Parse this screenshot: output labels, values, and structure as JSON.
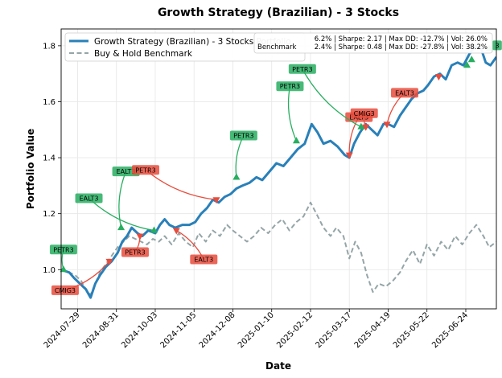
{
  "chart_data": {
    "type": "line",
    "title": "Growth Strategy (Brazilian) - 3 Stocks",
    "xlabel": "Date",
    "ylabel": "Portfolio Value",
    "x_ticks": [
      "2024-07-29",
      "2024-08-31",
      "2024-10-03",
      "2024-11-05",
      "2024-12-08",
      "2025-01-10",
      "2025-02-12",
      "2025-03-17",
      "2025-04-19",
      "2025-05-22",
      "2025-06-24"
    ],
    "xlim": [
      "2024-07-15",
      "2025-07-20"
    ],
    "ylim": [
      0.86,
      1.86
    ],
    "y_ticks": [
      1.0,
      1.2,
      1.4,
      1.6,
      1.8
    ],
    "grid": true,
    "legend_position": "top-left",
    "colors": {
      "strategy": "#2980b9",
      "benchmark": "#95a5a6",
      "buy": "#27ae60",
      "sell": "#e74c3c"
    },
    "stats_lines": [
      "6.2% | Sharpe: 2.17 | Max DD: -12.7% | Vol: 26.0%",
      "2.4% | Sharpe: 0.48 | Max DD: -27.8% | Vol: 38.2%"
    ],
    "stats_peek": "Benchmark",
    "series": [
      {
        "name": "Growth Strategy (Brazilian) - 3 Stocks Portfolio",
        "style": "solid",
        "points": [
          [
            "2024-07-15",
            1.0
          ],
          [
            "2024-07-22",
            0.99
          ],
          [
            "2024-07-26",
            0.97
          ],
          [
            "2024-07-31",
            0.95
          ],
          [
            "2024-08-05",
            0.93
          ],
          [
            "2024-08-09",
            0.9
          ],
          [
            "2024-08-13",
            0.95
          ],
          [
            "2024-08-17",
            0.98
          ],
          [
            "2024-08-22",
            1.01
          ],
          [
            "2024-08-27",
            1.03
          ],
          [
            "2024-09-01",
            1.06
          ],
          [
            "2024-09-05",
            1.1
          ],
          [
            "2024-09-09",
            1.12
          ],
          [
            "2024-09-13",
            1.15
          ],
          [
            "2024-09-18",
            1.13
          ],
          [
            "2024-09-22",
            1.12
          ],
          [
            "2024-09-27",
            1.14
          ],
          [
            "2024-10-03",
            1.13
          ],
          [
            "2024-10-07",
            1.16
          ],
          [
            "2024-10-11",
            1.18
          ],
          [
            "2024-10-15",
            1.16
          ],
          [
            "2024-10-20",
            1.15
          ],
          [
            "2024-10-26",
            1.16
          ],
          [
            "2024-11-01",
            1.16
          ],
          [
            "2024-11-06",
            1.17
          ],
          [
            "2024-11-11",
            1.2
          ],
          [
            "2024-11-16",
            1.22
          ],
          [
            "2024-11-21",
            1.25
          ],
          [
            "2024-11-26",
            1.24
          ],
          [
            "2024-12-01",
            1.26
          ],
          [
            "2024-12-06",
            1.27
          ],
          [
            "2024-12-11",
            1.29
          ],
          [
            "2024-12-16",
            1.3
          ],
          [
            "2024-12-22",
            1.31
          ],
          [
            "2024-12-28",
            1.33
          ],
          [
            "2025-01-02",
            1.32
          ],
          [
            "2025-01-08",
            1.35
          ],
          [
            "2025-01-14",
            1.38
          ],
          [
            "2025-01-20",
            1.37
          ],
          [
            "2025-01-26",
            1.4
          ],
          [
            "2025-02-01",
            1.43
          ],
          [
            "2025-02-07",
            1.45
          ],
          [
            "2025-02-13",
            1.52
          ],
          [
            "2025-02-18",
            1.49
          ],
          [
            "2025-02-23",
            1.45
          ],
          [
            "2025-03-01",
            1.46
          ],
          [
            "2025-03-07",
            1.44
          ],
          [
            "2025-03-13",
            1.41
          ],
          [
            "2025-03-17",
            1.4
          ],
          [
            "2025-03-21",
            1.45
          ],
          [
            "2025-03-26",
            1.49
          ],
          [
            "2025-03-31",
            1.52
          ],
          [
            "2025-04-05",
            1.5
          ],
          [
            "2025-04-10",
            1.48
          ],
          [
            "2025-04-15",
            1.52
          ],
          [
            "2025-04-19",
            1.52
          ],
          [
            "2025-04-24",
            1.51
          ],
          [
            "2025-04-29",
            1.55
          ],
          [
            "2025-05-04",
            1.58
          ],
          [
            "2025-05-09",
            1.61
          ],
          [
            "2025-05-14",
            1.63
          ],
          [
            "2025-05-19",
            1.64
          ],
          [
            "2025-05-23",
            1.66
          ],
          [
            "2025-05-28",
            1.69
          ],
          [
            "2025-06-02",
            1.7
          ],
          [
            "2025-06-07",
            1.68
          ],
          [
            "2025-06-12",
            1.73
          ],
          [
            "2025-06-17",
            1.74
          ],
          [
            "2025-06-22",
            1.73
          ],
          [
            "2025-06-27",
            1.77
          ],
          [
            "2025-07-02",
            1.8
          ],
          [
            "2025-07-07",
            1.79
          ],
          [
            "2025-07-11",
            1.74
          ],
          [
            "2025-07-15",
            1.73
          ],
          [
            "2025-07-20",
            1.76
          ]
        ]
      },
      {
        "name": "Buy & Hold Benchmark",
        "style": "dashed",
        "points": [
          [
            "2024-07-15",
            1.0
          ],
          [
            "2024-07-22",
            0.99
          ],
          [
            "2024-07-27",
            0.98
          ],
          [
            "2024-08-01",
            0.96
          ],
          [
            "2024-08-05",
            0.93
          ],
          [
            "2024-08-09",
            0.91
          ],
          [
            "2024-08-13",
            0.95
          ],
          [
            "2024-08-17",
            0.99
          ],
          [
            "2024-08-22",
            1.02
          ],
          [
            "2024-08-27",
            1.05
          ],
          [
            "2024-09-01",
            1.08
          ],
          [
            "2024-09-06",
            1.1
          ],
          [
            "2024-09-11",
            1.12
          ],
          [
            "2024-09-16",
            1.11
          ],
          [
            "2024-09-21",
            1.1
          ],
          [
            "2024-09-26",
            1.09
          ],
          [
            "2024-10-01",
            1.11
          ],
          [
            "2024-10-06",
            1.1
          ],
          [
            "2024-10-11",
            1.12
          ],
          [
            "2024-10-17",
            1.09
          ],
          [
            "2024-10-23",
            1.13
          ],
          [
            "2024-10-29",
            1.1
          ],
          [
            "2024-11-04",
            1.08
          ],
          [
            "2024-11-09",
            1.13
          ],
          [
            "2024-11-15",
            1.1
          ],
          [
            "2024-11-21",
            1.14
          ],
          [
            "2024-11-27",
            1.12
          ],
          [
            "2024-12-03",
            1.16
          ],
          [
            "2024-12-08",
            1.14
          ],
          [
            "2024-12-14",
            1.12
          ],
          [
            "2024-12-20",
            1.1
          ],
          [
            "2024-12-26",
            1.12
          ],
          [
            "2025-01-01",
            1.15
          ],
          [
            "2025-01-07",
            1.13
          ],
          [
            "2025-01-13",
            1.16
          ],
          [
            "2025-01-19",
            1.18
          ],
          [
            "2025-01-25",
            1.14
          ],
          [
            "2025-01-31",
            1.17
          ],
          [
            "2025-02-06",
            1.19
          ],
          [
            "2025-02-12",
            1.24
          ],
          [
            "2025-02-17",
            1.2
          ],
          [
            "2025-02-23",
            1.15
          ],
          [
            "2025-03-01",
            1.12
          ],
          [
            "2025-03-06",
            1.15
          ],
          [
            "2025-03-12",
            1.12
          ],
          [
            "2025-03-17",
            1.04
          ],
          [
            "2025-03-22",
            1.1
          ],
          [
            "2025-03-27",
            1.06
          ],
          [
            "2025-04-01",
            0.98
          ],
          [
            "2025-04-06",
            0.92
          ],
          [
            "2025-04-11",
            0.95
          ],
          [
            "2025-04-17",
            0.94
          ],
          [
            "2025-04-23",
            0.96
          ],
          [
            "2025-04-29",
            0.99
          ],
          [
            "2025-05-04",
            1.03
          ],
          [
            "2025-05-10",
            1.07
          ],
          [
            "2025-05-16",
            1.02
          ],
          [
            "2025-05-22",
            1.09
          ],
          [
            "2025-05-28",
            1.05
          ],
          [
            "2025-06-03",
            1.1
          ],
          [
            "2025-06-09",
            1.07
          ],
          [
            "2025-06-15",
            1.12
          ],
          [
            "2025-06-21",
            1.09
          ],
          [
            "2025-06-27",
            1.13
          ],
          [
            "2025-07-03",
            1.16
          ],
          [
            "2025-07-09",
            1.12
          ],
          [
            "2025-07-14",
            1.08
          ],
          [
            "2025-07-20",
            1.1
          ]
        ]
      }
    ],
    "annotations": [
      {
        "label": "CMIG3",
        "kind": "sell",
        "date": "2024-08-25",
        "value": 1.03
      },
      {
        "label": "PETR3",
        "kind": "buy",
        "date": "2024-07-17",
        "value": 1.0
      },
      {
        "label": "EALT3",
        "kind": "buy",
        "date": "2024-09-04",
        "value": 1.15
      },
      {
        "label": "EALT3",
        "kind": "buy",
        "date": "2024-10-02",
        "value": 1.14
      },
      {
        "label": "PETR3",
        "kind": "sell",
        "date": "2024-09-20",
        "value": 1.12
      },
      {
        "label": "EALT3",
        "kind": "sell",
        "date": "2024-10-21",
        "value": 1.14
      },
      {
        "label": "PETR3",
        "kind": "sell",
        "date": "2024-11-24",
        "value": 1.25
      },
      {
        "label": "PETR3",
        "kind": "buy",
        "date": "2024-12-11",
        "value": 1.33
      },
      {
        "label": "PETR3",
        "kind": "buy",
        "date": "2025-01-31",
        "value": 1.46
      },
      {
        "label": "EALT3",
        "kind": "sell",
        "date": "2025-03-17",
        "value": 1.41
      },
      {
        "label": "PETR3",
        "kind": "buy",
        "date": "2025-03-27",
        "value": 1.51
      },
      {
        "label": "CMIG3",
        "kind": "sell",
        "date": "2025-03-31",
        "value": 1.51
      },
      {
        "label": "EALT3",
        "kind": "sell",
        "date": "2025-04-18",
        "value": 1.52
      },
      {
        "label": "",
        "kind": "sell",
        "date": "2025-06-01",
        "value": 1.69
      },
      {
        "label": "",
        "kind": "buy",
        "date": "2025-06-25",
        "value": 1.73
      },
      {
        "label": "",
        "kind": "buy",
        "date": "2025-06-29",
        "value": 1.75
      },
      {
        "label": "3",
        "kind": "buy",
        "date": "2025-07-14",
        "value": 1.79
      }
    ]
  }
}
